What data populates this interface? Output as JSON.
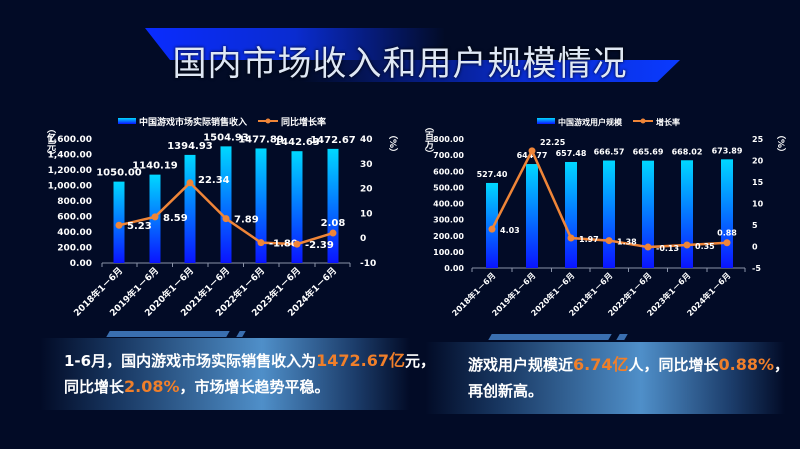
{
  "title": "国内市场收入和用户规模情况",
  "chart_data": [
    {
      "type": "bar+line",
      "categories": [
        "2018年1－6月",
        "2019年1－6月",
        "2020年1－6月",
        "2021年1－6月",
        "2022年1－6月",
        "2023年1－6月",
        "2024年1－6月"
      ],
      "series": [
        {
          "name": "中国游戏市场实际销售收入",
          "type": "bar",
          "axis": "left",
          "values": [
            1050.0,
            1140.19,
            1394.93,
            1504.93,
            1477.89,
            1442.63,
            1472.67
          ],
          "labels": [
            "1050.00",
            "1140.19",
            "1394.93",
            "1504.93",
            "1477.89",
            "1442.63",
            "1472.67"
          ]
        },
        {
          "name": "同比增长率",
          "type": "line",
          "axis": "right",
          "values": [
            5.23,
            8.59,
            22.34,
            7.89,
            -1.8,
            -2.39,
            2.08
          ],
          "labels": [
            "5.23",
            "8.59",
            "22.34",
            "7.89",
            "-1.80",
            "-2.39",
            "2.08"
          ]
        }
      ],
      "ylabel": "（亿元）",
      "y2label": "（%）",
      "ylim": [
        0,
        1600
      ],
      "y2lim": [
        -10,
        40
      ],
      "yticks": [
        "0.00",
        "200.00",
        "400.00",
        "600.00",
        "800.00",
        "1,000.00",
        "1,200.00",
        "1,400.00",
        "1,600.00"
      ],
      "y2ticks": [
        "-10",
        "0",
        "10",
        "20",
        "30",
        "40"
      ],
      "legend": "top",
      "grid": false,
      "colors": {
        "bar_top": "#00d8ff",
        "bar_bottom": "#0a14ff",
        "line": "#ef8538"
      }
    },
    {
      "type": "bar+line",
      "categories": [
        "2018年1－6月",
        "2019年1－6月",
        "2020年1－6月",
        "2021年1－6月",
        "2022年1－6月",
        "2023年1－6月",
        "2024年1－6月"
      ],
      "series": [
        {
          "name": "中国游戏用户规模",
          "type": "bar",
          "axis": "left",
          "values": [
            527.4,
            644.77,
            657.48,
            666.57,
            665.69,
            668.02,
            673.89
          ],
          "labels": [
            "527.40",
            "644.77",
            "657.48",
            "666.57",
            "665.69",
            "668.02",
            "673.89"
          ]
        },
        {
          "name": "增长率",
          "type": "line",
          "axis": "right",
          "values": [
            4.03,
            22.25,
            1.97,
            1.38,
            -0.13,
            0.35,
            0.88
          ],
          "labels": [
            "4.03",
            "22.25",
            "1.97",
            "1.38",
            "-0.13",
            "0.35",
            "0.88"
          ]
        }
      ],
      "ylabel": "（百万）",
      "y2label": "（%）",
      "ylim": [
        0,
        800
      ],
      "y2lim": [
        -5,
        25
      ],
      "yticks": [
        "0.00",
        "100.00",
        "200.00",
        "300.00",
        "400.00",
        "500.00",
        "600.00",
        "700.00",
        "800.00"
      ],
      "y2ticks": [
        "-5",
        "0",
        "5",
        "10",
        "15",
        "20",
        "25"
      ],
      "legend": "top",
      "grid": false,
      "colors": {
        "bar_top": "#00d8ff",
        "bar_bottom": "#0a14ff",
        "line": "#ef8538"
      }
    }
  ],
  "summary_left": {
    "p1": "1-6月，国内游戏市场实际销售收入为",
    "h1": "1472.67亿",
    "p2": "元，",
    "p3": "同比增长",
    "h2": "2.08%",
    "p4": "，市场增长趋势平稳。"
  },
  "summary_right": {
    "p1": "游戏用户规模近",
    "h1": "6.74亿",
    "p2": "人，同比增长",
    "h2": "0.88%",
    "p3": "，",
    "p4": "再创新高。"
  }
}
